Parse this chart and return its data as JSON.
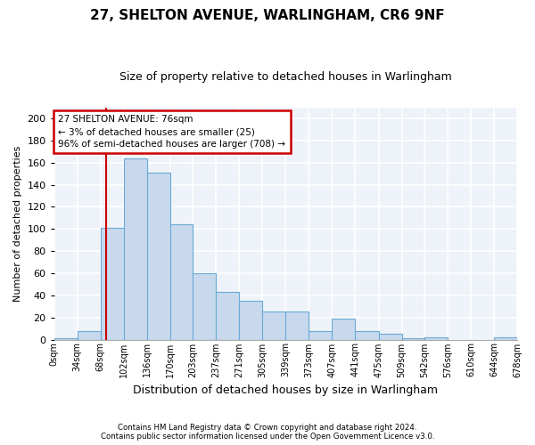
{
  "title": "27, SHELTON AVENUE, WARLINGHAM, CR6 9NF",
  "subtitle": "Size of property relative to detached houses in Warlingham",
  "xlabel": "Distribution of detached houses by size in Warlingham",
  "ylabel": "Number of detached properties",
  "footnote1": "Contains HM Land Registry data © Crown copyright and database right 2024.",
  "footnote2": "Contains public sector information licensed under the Open Government Licence v3.0.",
  "bar_color": "#c8d9ee",
  "bar_edge_color": "#6aaad4",
  "annotation_line1": "27 SHELTON AVENUE: 76sqm",
  "annotation_line2": "← 3% of detached houses are smaller (25)",
  "annotation_line3": "96% of semi-detached houses are larger (708) →",
  "property_line_x": 76,
  "bins": [
    0,
    34,
    68,
    102,
    136,
    170,
    203,
    237,
    271,
    305,
    339,
    373,
    407,
    441,
    475,
    509,
    542,
    576,
    610,
    644,
    678
  ],
  "counts": [
    1,
    8,
    101,
    164,
    151,
    104,
    60,
    43,
    35,
    25,
    25,
    8,
    19,
    8,
    5,
    1,
    2,
    0,
    0,
    2
  ],
  "ylim": [
    0,
    210
  ],
  "yticks": [
    0,
    20,
    40,
    60,
    80,
    100,
    120,
    140,
    160,
    180,
    200
  ],
  "tick_labels": [
    "0sqm",
    "34sqm",
    "68sqm",
    "102sqm",
    "136sqm",
    "170sqm",
    "203sqm",
    "237sqm",
    "271sqm",
    "305sqm",
    "339sqm",
    "373sqm",
    "407sqm",
    "441sqm",
    "475sqm",
    "509sqm",
    "542sqm",
    "576sqm",
    "610sqm",
    "644sqm",
    "678sqm"
  ],
  "bg_color": "#eef2f9",
  "grid_color": "#ffffff",
  "annotation_box_color": "#ffffff",
  "annotation_box_edge": "#cc0000",
  "vline_color": "#cc0000",
  "title_fontsize": 11,
  "subtitle_fontsize": 9
}
